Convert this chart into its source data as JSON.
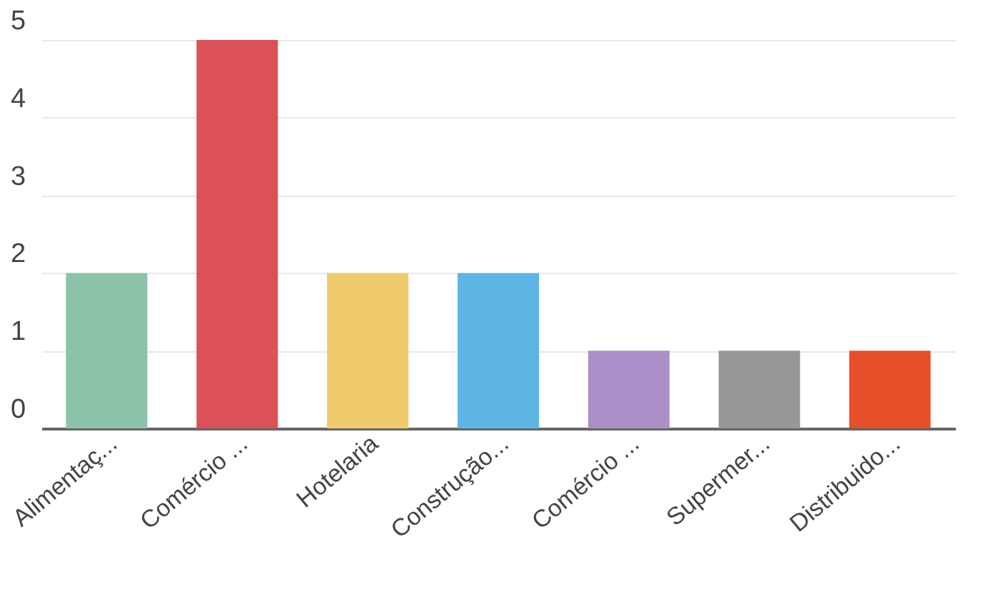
{
  "chart_data": {
    "type": "bar",
    "categories": [
      "Alimentaç...",
      "Comércio ...",
      "Hotelaria",
      "Construção...",
      "Comércio ...",
      "Supermer...",
      "Distribuido..."
    ],
    "values": [
      2,
      5,
      2,
      2,
      1,
      1,
      1
    ],
    "colors": [
      "#8cc3a8",
      "#db5157",
      "#f0cb6b",
      "#5db5e6",
      "#ab8fc8",
      "#979797",
      "#e54f2a"
    ],
    "ylim": [
      0,
      5
    ],
    "yticks": [
      0,
      1,
      2,
      3,
      4,
      5
    ],
    "grid": "y"
  }
}
